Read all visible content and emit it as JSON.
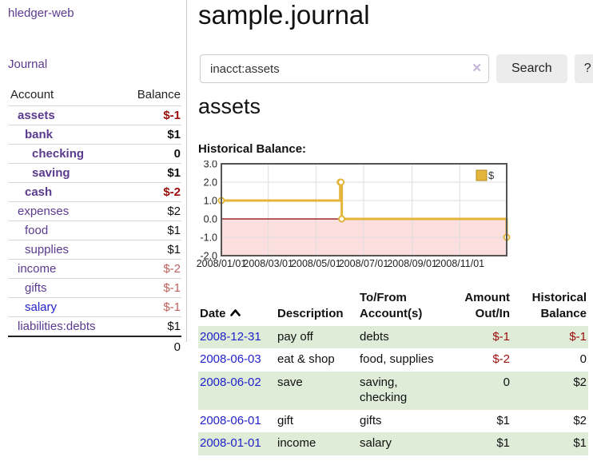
{
  "sidebar": {
    "app_title": "hledger-web",
    "nav": {
      "journal_label": "Journal"
    },
    "accounts_table": {
      "headers": {
        "account": "Account",
        "balance": "Balance"
      },
      "rows": [
        {
          "name": "assets",
          "balance": "$-1",
          "indent": 1,
          "bold": true,
          "link_color": "purple",
          "balance_color": "negstrong"
        },
        {
          "name": "bank",
          "balance": "$1",
          "indent": 2,
          "bold": true,
          "link_color": "purple",
          "balance_color": "default"
        },
        {
          "name": "checking",
          "balance": "0",
          "indent": 3,
          "bold": true,
          "link_color": "purple",
          "balance_color": "default"
        },
        {
          "name": "saving",
          "balance": "$1",
          "indent": 3,
          "bold": true,
          "link_color": "purple",
          "balance_color": "default"
        },
        {
          "name": "cash",
          "balance": "$-2",
          "indent": 2,
          "bold": true,
          "link_color": "purple",
          "balance_color": "negstrong"
        },
        {
          "name": "expenses",
          "balance": "$2",
          "indent": 1,
          "bold": false,
          "link_color": "purple",
          "balance_color": "default"
        },
        {
          "name": "food",
          "balance": "$1",
          "indent": 2,
          "bold": false,
          "link_color": "purple",
          "balance_color": "default"
        },
        {
          "name": "supplies",
          "balance": "$1",
          "indent": 2,
          "bold": false,
          "link_color": "purple",
          "balance_color": "default"
        },
        {
          "name": "income",
          "balance": "$-2",
          "indent": 1,
          "bold": false,
          "link_color": "purple",
          "balance_color": "negsoft"
        },
        {
          "name": "gifts",
          "balance": "$-1",
          "indent": 2,
          "bold": false,
          "link_color": "purple",
          "balance_color": "negsoft"
        },
        {
          "name": "salary",
          "balance": "$-1",
          "indent": 2,
          "bold": false,
          "link_color": "blue",
          "balance_color": "negsoft"
        },
        {
          "name": "liabilities:debts",
          "balance": "$1",
          "indent": 1,
          "bold": false,
          "link_color": "purple",
          "balance_color": "default"
        }
      ],
      "total": "0"
    }
  },
  "header": {
    "title": "sample.journal"
  },
  "search": {
    "query": "inacct:assets",
    "clear_icon": "✕",
    "search_button": "Search",
    "help_button": "?"
  },
  "account_page": {
    "title": "assets",
    "chart_label": "Historical Balance:"
  },
  "chart_data": {
    "type": "line",
    "title": "Historical Balance:",
    "series": [
      {
        "name": "$",
        "points": [
          {
            "date": "2008-01-01",
            "day": 0,
            "value": 1
          },
          {
            "date": "2008-06-01",
            "day": 152,
            "value": 2
          },
          {
            "date": "2008-06-02",
            "day": 153,
            "value": 2
          },
          {
            "date": "2008-06-03",
            "day": 154,
            "value": 0
          },
          {
            "date": "2008-12-31",
            "day": 365,
            "value": -1
          }
        ]
      }
    ],
    "x_ticks": [
      {
        "day": 0,
        "label": "2008/01/01"
      },
      {
        "day": 60,
        "label": "2008/03/01"
      },
      {
        "day": 121,
        "label": "2008/05/01"
      },
      {
        "day": 182,
        "label": "2008/07/01"
      },
      {
        "day": 244,
        "label": "2008/09/01"
      },
      {
        "day": 305,
        "label": "2008/11/01"
      }
    ],
    "y_ticks": [
      3.0,
      2.0,
      1.0,
      0.0,
      -1.0,
      -2.0
    ],
    "ylim": [
      -2,
      3
    ],
    "xlim_days": [
      0,
      365
    ],
    "legend_position": "top-right",
    "grid": true,
    "line_color": "#e3b53a",
    "marker_fill": "#ffffff",
    "negative_region_fill": "#fbdfdf",
    "zero_line_color": "#8b0000",
    "grid_color": "#dddddd",
    "border_color": "#555555"
  },
  "transactions_table": {
    "headers": {
      "date": "Date",
      "description": "Description",
      "account": "To/From Account(s)",
      "amount": "Amount Out/In",
      "balance": "Historical Balance"
    },
    "sort": {
      "column": "date",
      "direction": "ascending"
    },
    "rows": [
      {
        "date": "2008-12-31",
        "description": "pay off",
        "accounts": "debts",
        "amount": "$-1",
        "balance": "$-1",
        "amount_negative": true,
        "balance_negative": true
      },
      {
        "date": "2008-06-03",
        "description": "eat & shop",
        "accounts": "food, supplies",
        "amount": "$-2",
        "balance": "0",
        "amount_negative": true,
        "balance_negative": false
      },
      {
        "date": "2008-06-02",
        "description": "save",
        "accounts": "saving, checking",
        "amount": "0",
        "balance": "$2",
        "amount_negative": false,
        "balance_negative": false
      },
      {
        "date": "2008-06-01",
        "description": "gift",
        "accounts": "gifts",
        "amount": "$1",
        "balance": "$2",
        "amount_negative": false,
        "balance_negative": false
      },
      {
        "date": "2008-01-01",
        "description": "income",
        "accounts": "salary",
        "amount": "$1",
        "balance": "$1",
        "amount_negative": false,
        "balance_negative": false
      }
    ]
  },
  "colors": {
    "purple_link": "#5b3a8f",
    "blue_link": "#2222cc",
    "negative_strong": "#9b0c0c",
    "negative_soft": "#c05f5f",
    "row_shade_green": "#deecd8"
  }
}
